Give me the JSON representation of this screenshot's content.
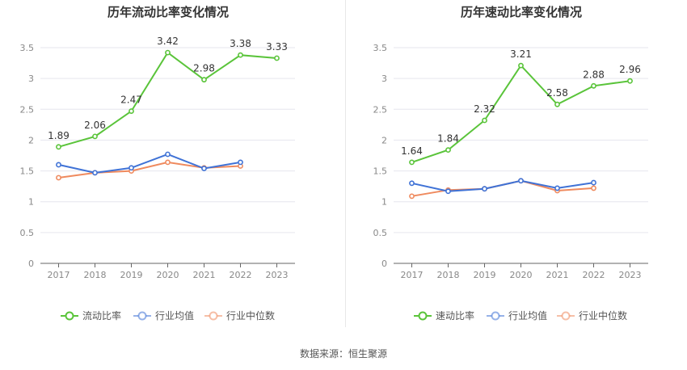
{
  "source_text": "数据来源：恒生聚源",
  "chart_data": [
    {
      "type": "line",
      "title": "历年流动比率变化情况",
      "categories": [
        "2017",
        "2018",
        "2019",
        "2020",
        "2021",
        "2022",
        "2023"
      ],
      "ylim": [
        0,
        3.5
      ],
      "yticks": [
        "0",
        "0.5",
        "1",
        "1.5",
        "2",
        "2.5",
        "3",
        "3.5"
      ],
      "grid": true,
      "legend_position": "bottom",
      "series": [
        {
          "name": "流动比率",
          "color": "#5ac43a",
          "values": [
            1.89,
            2.06,
            2.47,
            3.42,
            2.98,
            3.38,
            3.33
          ],
          "labels": [
            "1.89",
            "2.06",
            "2.47",
            "3.42",
            "2.98",
            "3.38",
            "3.33"
          ]
        },
        {
          "name": "行业均值",
          "color": "#3f72d6",
          "values": [
            1.6,
            1.47,
            1.55,
            1.77,
            1.54,
            1.64,
            null
          ]
        },
        {
          "name": "行业中位数",
          "color": "#ef8a5e",
          "values": [
            1.39,
            1.47,
            1.5,
            1.64,
            1.55,
            1.58,
            null
          ]
        }
      ]
    },
    {
      "type": "line",
      "title": "历年速动比率变化情况",
      "categories": [
        "2017",
        "2018",
        "2019",
        "2020",
        "2021",
        "2022",
        "2023"
      ],
      "ylim": [
        0,
        3.5
      ],
      "yticks": [
        "0",
        "0.5",
        "1",
        "1.5",
        "2",
        "2.5",
        "3",
        "3.5"
      ],
      "grid": true,
      "legend_position": "bottom",
      "series": [
        {
          "name": "速动比率",
          "color": "#5ac43a",
          "values": [
            1.64,
            1.84,
            2.32,
            3.21,
            2.58,
            2.88,
            2.96
          ],
          "labels": [
            "1.64",
            "1.84",
            "2.32",
            "3.21",
            "2.58",
            "2.88",
            "2.96"
          ]
        },
        {
          "name": "行业均值",
          "color": "#3f72d6",
          "values": [
            1.3,
            1.17,
            1.21,
            1.34,
            1.22,
            1.31,
            null
          ]
        },
        {
          "name": "行业中位数",
          "color": "#ef8a5e",
          "values": [
            1.09,
            1.19,
            1.21,
            1.34,
            1.18,
            1.22,
            null
          ]
        }
      ]
    }
  ]
}
